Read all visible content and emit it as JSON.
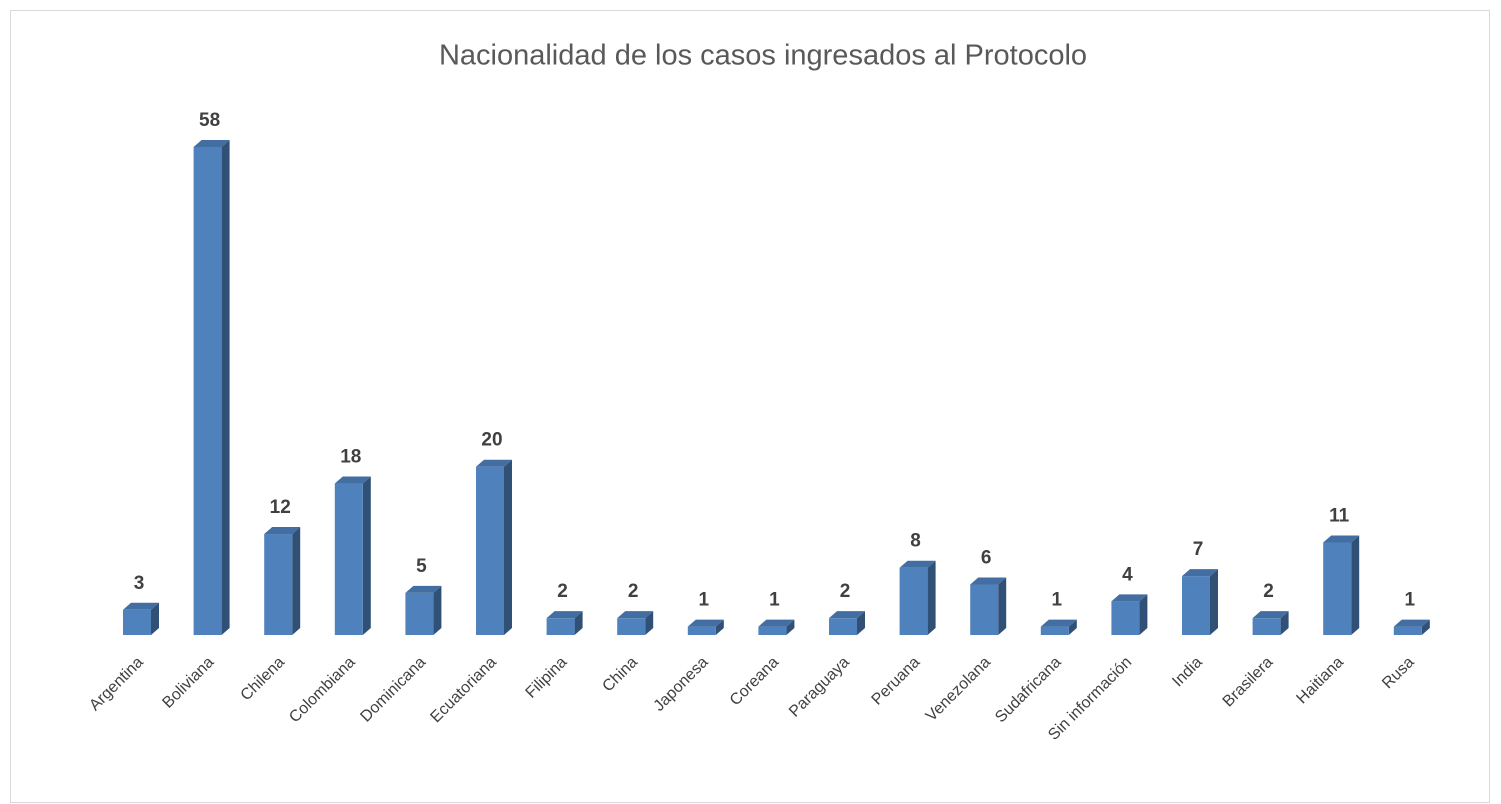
{
  "chart_data": {
    "type": "bar3d",
    "title": "Nacionalidad de los casos ingresados al Protocolo",
    "categories": [
      "Argentina",
      "Boliviana",
      "Chilena",
      "Colombiana",
      "Dominicana",
      "Ecuatoriana",
      "Filipina",
      "China",
      "Japonesa",
      "Coreana",
      "Paraguaya",
      "Peruana",
      "Venezolana",
      "Sudafricana",
      "Sin información",
      "India",
      "Brasilera",
      "Haitiana",
      "Rusa"
    ],
    "values": [
      3,
      58,
      12,
      18,
      5,
      20,
      2,
      2,
      1,
      1,
      2,
      8,
      6,
      1,
      4,
      7,
      2,
      11,
      1
    ],
    "color": "#4f81bd"
  }
}
